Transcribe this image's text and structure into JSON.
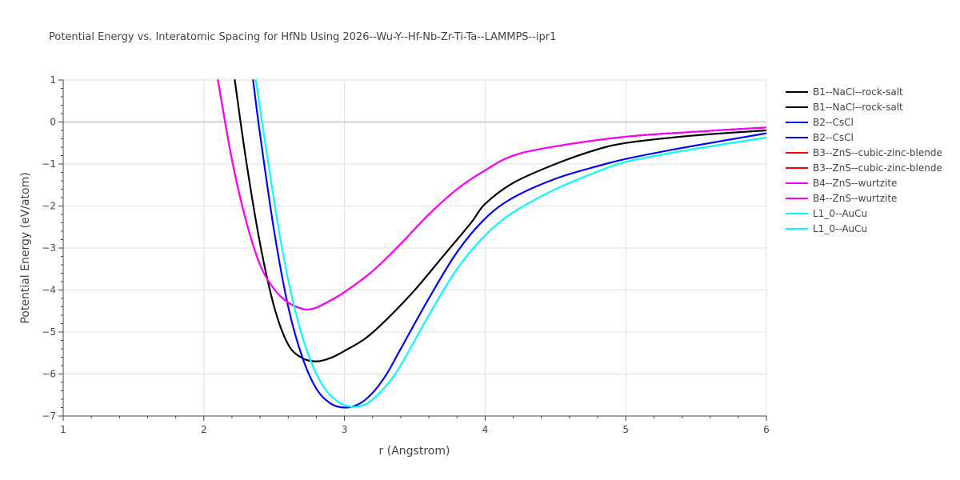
{
  "chart_data": {
    "type": "line",
    "title": "Potential Energy vs. Interatomic Spacing for HfNb Using 2026--Wu-Y--Hf-Nb-Zr-Ti-Ta--LAMMPS--ipr1",
    "xlabel": "r (Angstrom)",
    "ylabel": "Potential Energy (eV/atom)",
    "xlim": [
      1,
      6
    ],
    "ylim": [
      -7,
      1
    ],
    "xticks": [
      "1",
      "2",
      "3",
      "4",
      "5",
      "6"
    ],
    "yticks": [
      "1",
      "0",
      "−1",
      "−2",
      "−3",
      "−4",
      "−5",
      "−6",
      "−7"
    ],
    "grid": true,
    "legend_position": "right",
    "series": [
      {
        "name": "B1--NaCl--rock-salt",
        "color": "#000000",
        "x": [
          2.22,
          2.3,
          2.4,
          2.5,
          2.6,
          2.7,
          2.8,
          2.9,
          3.0,
          3.15,
          3.3,
          3.5,
          3.7,
          3.9,
          4.0,
          4.2,
          4.5,
          4.8,
          5.0,
          5.3,
          5.6,
          6.0
        ],
        "y": [
          1.0,
          -0.9,
          -2.9,
          -4.4,
          -5.3,
          -5.62,
          -5.7,
          -5.62,
          -5.45,
          -5.15,
          -4.7,
          -4.0,
          -3.2,
          -2.4,
          -1.95,
          -1.45,
          -1.0,
          -0.65,
          -0.5,
          -0.38,
          -0.29,
          -0.2
        ]
      },
      {
        "name": "B1--NaCl--rock-salt",
        "color": "#000000",
        "x": [
          2.22,
          2.3,
          2.4,
          2.5,
          2.6,
          2.7,
          2.8,
          2.9,
          3.0,
          3.15,
          3.3,
          3.5,
          3.7,
          3.9,
          4.0,
          4.2,
          4.5,
          4.8,
          5.0,
          5.3,
          5.6,
          6.0
        ],
        "y": [
          1.0,
          -0.9,
          -2.9,
          -4.4,
          -5.3,
          -5.62,
          -5.7,
          -5.62,
          -5.45,
          -5.15,
          -4.7,
          -4.0,
          -3.2,
          -2.4,
          -1.95,
          -1.45,
          -1.0,
          -0.65,
          -0.5,
          -0.38,
          -0.29,
          -0.2
        ]
      },
      {
        "name": "B2--CsCl",
        "color": "#0000ff",
        "x": [
          2.35,
          2.4,
          2.5,
          2.6,
          2.7,
          2.8,
          2.9,
          3.0,
          3.1,
          3.2,
          3.3,
          3.4,
          3.6,
          3.8,
          4.0,
          4.2,
          4.5,
          4.8,
          5.0,
          5.3,
          5.6,
          6.0
        ],
        "y": [
          1.0,
          -0.3,
          -2.6,
          -4.4,
          -5.6,
          -6.35,
          -6.7,
          -6.8,
          -6.72,
          -6.45,
          -6.0,
          -5.4,
          -4.2,
          -3.1,
          -2.3,
          -1.8,
          -1.35,
          -1.05,
          -0.88,
          -0.68,
          -0.5,
          -0.27
        ]
      },
      {
        "name": "B2--CsCl",
        "color": "#0000ff",
        "x": [
          2.35,
          2.4,
          2.5,
          2.6,
          2.7,
          2.8,
          2.9,
          3.0,
          3.1,
          3.2,
          3.3,
          3.4,
          3.6,
          3.8,
          4.0,
          4.2,
          4.5,
          4.8,
          5.0,
          5.3,
          5.6,
          6.0
        ],
        "y": [
          1.0,
          -0.3,
          -2.6,
          -4.4,
          -5.6,
          -6.35,
          -6.7,
          -6.8,
          -6.72,
          -6.45,
          -6.0,
          -5.4,
          -4.2,
          -3.1,
          -2.3,
          -1.8,
          -1.35,
          -1.05,
          -0.88,
          -0.68,
          -0.5,
          -0.27
        ]
      },
      {
        "name": "B3--ZnS--cubic-zinc-blende",
        "color": "#ff0000",
        "x": [
          2.1,
          2.2,
          2.3,
          2.4,
          2.5,
          2.6,
          2.7,
          2.75,
          2.8,
          2.9,
          3.0,
          3.2,
          3.4,
          3.6,
          3.8,
          4.0,
          4.2,
          4.5,
          5.0,
          5.5,
          6.0
        ],
        "y": [
          1.0,
          -0.9,
          -2.35,
          -3.4,
          -3.98,
          -4.3,
          -4.45,
          -4.46,
          -4.42,
          -4.25,
          -4.05,
          -3.55,
          -2.9,
          -2.2,
          -1.6,
          -1.15,
          -0.8,
          -0.58,
          -0.35,
          -0.23,
          -0.13
        ]
      },
      {
        "name": "B3--ZnS--cubic-zinc-blende",
        "color": "#ff0000",
        "x": [
          2.1,
          2.2,
          2.3,
          2.4,
          2.5,
          2.6,
          2.7,
          2.75,
          2.8,
          2.9,
          3.0,
          3.2,
          3.4,
          3.6,
          3.8,
          4.0,
          4.2,
          4.5,
          5.0,
          5.5,
          6.0
        ],
        "y": [
          1.0,
          -0.9,
          -2.35,
          -3.4,
          -3.98,
          -4.3,
          -4.45,
          -4.46,
          -4.42,
          -4.25,
          -4.05,
          -3.55,
          -2.9,
          -2.2,
          -1.6,
          -1.15,
          -0.8,
          -0.58,
          -0.35,
          -0.23,
          -0.13
        ]
      },
      {
        "name": "B4--ZnS--wurtzite",
        "color": "#ff00ff",
        "x": [
          2.1,
          2.2,
          2.3,
          2.4,
          2.5,
          2.6,
          2.7,
          2.75,
          2.8,
          2.9,
          3.0,
          3.2,
          3.4,
          3.6,
          3.8,
          4.0,
          4.2,
          4.5,
          5.0,
          5.5,
          6.0
        ],
        "y": [
          1.0,
          -0.9,
          -2.35,
          -3.4,
          -3.98,
          -4.3,
          -4.45,
          -4.46,
          -4.42,
          -4.25,
          -4.05,
          -3.55,
          -2.9,
          -2.2,
          -1.6,
          -1.15,
          -0.8,
          -0.58,
          -0.35,
          -0.23,
          -0.13
        ]
      },
      {
        "name": "B4--ZnS--wurtzite",
        "color": "#ff00ff",
        "x": [
          2.1,
          2.2,
          2.3,
          2.4,
          2.5,
          2.6,
          2.7,
          2.75,
          2.8,
          2.9,
          3.0,
          3.2,
          3.4,
          3.6,
          3.8,
          4.0,
          4.2,
          4.5,
          5.0,
          5.5,
          6.0
        ],
        "y": [
          1.0,
          -0.9,
          -2.35,
          -3.4,
          -3.98,
          -4.3,
          -4.45,
          -4.46,
          -4.42,
          -4.25,
          -4.05,
          -3.55,
          -2.9,
          -2.2,
          -1.6,
          -1.15,
          -0.8,
          -0.58,
          -0.35,
          -0.23,
          -0.13
        ]
      },
      {
        "name": "L1_0--AuCu",
        "color": "#00ffff",
        "x": [
          2.37,
          2.45,
          2.55,
          2.65,
          2.75,
          2.85,
          2.95,
          3.05,
          3.15,
          3.25,
          3.35,
          3.45,
          3.6,
          3.8,
          4.0,
          4.2,
          4.5,
          4.8,
          5.0,
          5.3,
          5.6,
          6.0
        ],
        "y": [
          1.0,
          -0.8,
          -2.9,
          -4.5,
          -5.6,
          -6.3,
          -6.65,
          -6.78,
          -6.72,
          -6.45,
          -6.05,
          -5.5,
          -4.6,
          -3.5,
          -2.7,
          -2.15,
          -1.6,
          -1.18,
          -0.95,
          -0.75,
          -0.58,
          -0.37
        ]
      },
      {
        "name": "L1_0--AuCu",
        "color": "#00ffff",
        "x": [
          2.37,
          2.45,
          2.55,
          2.65,
          2.75,
          2.85,
          2.95,
          3.05,
          3.15,
          3.25,
          3.35,
          3.45,
          3.6,
          3.8,
          4.0,
          4.2,
          4.5,
          4.8,
          5.0,
          5.3,
          5.6,
          6.0
        ],
        "y": [
          1.0,
          -0.8,
          -2.9,
          -4.5,
          -5.6,
          -6.3,
          -6.65,
          -6.78,
          -6.72,
          -6.45,
          -6.05,
          -5.5,
          -4.6,
          -3.5,
          -2.7,
          -2.15,
          -1.6,
          -1.18,
          -0.95,
          -0.75,
          -0.58,
          -0.37
        ]
      }
    ]
  }
}
